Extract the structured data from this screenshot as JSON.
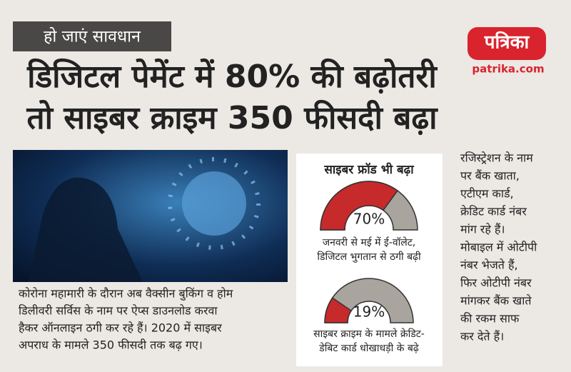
{
  "badge": "हो जाएं सावधान",
  "headline": [
    "डिजिटल पेमेंट में 80% की बढ़ोतरी",
    "तो साइबर क्राइम 350 फीसदी बढ़ा"
  ],
  "logo": {
    "name": "पत्रिका",
    "site": "patrika.com"
  },
  "body_text": [
    "कोरोना महामारी के दौरान अब वैक्सीन बुकिंग व होम",
    "डिलीवरी सर्विस के नाम पर ऐप्स डाउनलोड करवा",
    "हैकर ऑनलाइन ठगी कर रहे हैं। 2020 में साइबर",
    "अपराध के मामले 350 फीसदी तक बढ़ गए।"
  ],
  "panel_title": "साइबर फ्रॉड भी बढ़ा",
  "side_text": [
    "रजिस्ट्रेशन के नाम",
    "पर बैंक खाता,",
    "एटीएम कार्ड,",
    "क्रेडिट कार्ड नंबर",
    "मांग रहे हैं।",
    "मोबाइल में ओटीपी",
    "नंबर भेजते हैं,",
    "फिर ओटीपी नंबर",
    "मांगकर बैंक खाते",
    "की रकम साफ",
    "कर देते हैं।"
  ],
  "chart_data": [
    {
      "type": "gauge",
      "values": [
        70
      ],
      "value_labels": [
        "70%"
      ],
      "ylim": [
        0,
        100
      ],
      "color": "#c62a2a",
      "caption": [
        "जनवरी से मई में ई-वॉलेट,",
        "डिजिटल भुगतान से ठगी बढ़ी"
      ]
    },
    {
      "type": "gauge",
      "values": [
        19
      ],
      "value_labels": [
        "19%"
      ],
      "ylim": [
        0,
        100
      ],
      "color": "#c62a2a",
      "caption": [
        "साइबर क्राइम के मामले क्रेडिट-",
        "डेबिट कार्ड धोखाधड़ी के बढ़े"
      ]
    }
  ]
}
